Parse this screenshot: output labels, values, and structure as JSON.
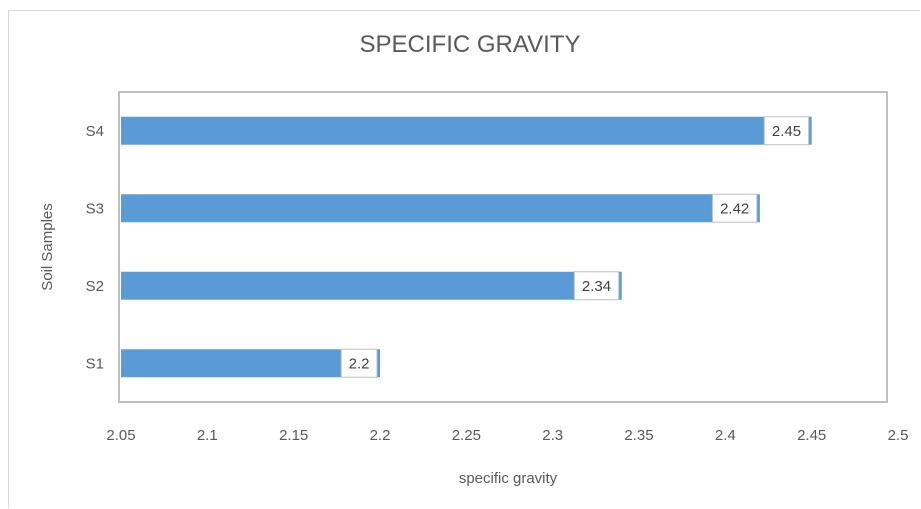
{
  "chart_data": {
    "type": "bar",
    "orientation": "horizontal",
    "title": "SPECIFIC GRAVITY",
    "xlabel": "specific  gravity",
    "ylabel": "Soil Samples",
    "categories": [
      "S1",
      "S2",
      "S3",
      "S4"
    ],
    "values": [
      2.2,
      2.34,
      2.42,
      2.45
    ],
    "data_labels": [
      "2.2",
      "2.34",
      "2.42",
      "2.45"
    ],
    "xlim": [
      2.05,
      2.5
    ],
    "xticks": [
      "2.05",
      "2.1",
      "2.15",
      "2.2",
      "2.25",
      "2.3",
      "2.35",
      "2.4",
      "2.45",
      "2.5"
    ],
    "grid": false,
    "legend": "none",
    "colors": {
      "bar": "#5b9bd5",
      "plot_border": "#bfbfbf",
      "text": "#595959"
    }
  }
}
